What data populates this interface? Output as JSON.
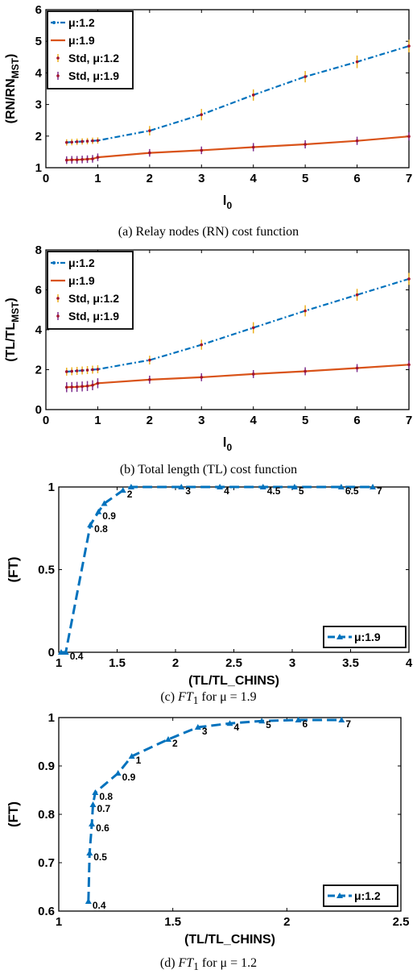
{
  "colors": {
    "blue": "#0072BD",
    "orange": "#D95319",
    "std_orange_bar": "#EDB120",
    "std_purple_bar": "#7E2F8E",
    "std_red_dot": "#A2142F",
    "axis": "#000000",
    "background": "#ffffff"
  },
  "captions": {
    "a": "(a) Relay nodes (RN) cost function",
    "b": "(b) Total length (TL) cost function",
    "c_prefix": "(c) ",
    "c_sym": "FT",
    "c_sub": "1",
    "c_suffix": " for μ = 1.9",
    "d_prefix": "(d) ",
    "d_sym": "FT",
    "d_sub": "1",
    "d_suffix": " for μ = 1.2"
  },
  "chart_data": [
    {
      "id": "a",
      "type": "line",
      "ylabel_main": "(RN/RN",
      "ylabel_sub": "MST",
      "ylabel_end": ")",
      "xlabel_main": "l",
      "xlabel_sub": "0",
      "xlim": [
        0,
        7
      ],
      "ylim": [
        1,
        6
      ],
      "xticks": [
        0,
        1,
        2,
        3,
        4,
        5,
        6,
        7
      ],
      "yticks": [
        1,
        2,
        3,
        4,
        5,
        6
      ],
      "legend_position": "top-left",
      "legend": [
        "μ:1.2",
        "μ:1.9",
        "Std, μ:1.2",
        "Std, μ:1.9"
      ],
      "x": [
        0.4,
        0.5,
        0.6,
        0.7,
        0.8,
        0.9,
        1,
        2,
        3,
        4,
        5,
        6,
        7
      ],
      "series": [
        {
          "name": "μ:1.2",
          "values": [
            1.8,
            1.81,
            1.82,
            1.83,
            1.84,
            1.85,
            1.86,
            2.17,
            2.68,
            3.3,
            3.88,
            4.35,
            4.85
          ],
          "err": [
            0.1,
            0.1,
            0.1,
            0.1,
            0.1,
            0.1,
            0.1,
            0.15,
            0.18,
            0.18,
            0.18,
            0.2,
            0.2
          ]
        },
        {
          "name": "μ:1.9",
          "values": [
            1.24,
            1.25,
            1.25,
            1.26,
            1.27,
            1.28,
            1.33,
            1.47,
            1.55,
            1.65,
            1.74,
            1.85,
            1.99
          ],
          "err": [
            0.12,
            0.12,
            0.12,
            0.12,
            0.12,
            0.12,
            0.12,
            0.12,
            0.12,
            0.13,
            0.13,
            0.13,
            0.13
          ]
        }
      ]
    },
    {
      "id": "b",
      "type": "line",
      "ylabel_main": "(TL/TL",
      "ylabel_sub": "MST",
      "ylabel_end": ")",
      "xlabel_main": "l",
      "xlabel_sub": "0",
      "xlim": [
        0,
        7
      ],
      "ylim": [
        0,
        8
      ],
      "xticks": [
        0,
        1,
        2,
        3,
        4,
        5,
        6,
        7
      ],
      "yticks": [
        0,
        2,
        4,
        6,
        8
      ],
      "legend_position": "top-left",
      "legend": [
        "μ:1.2",
        "μ:1.9",
        "Std, μ:1.2",
        "Std, μ:1.9"
      ],
      "x": [
        0.4,
        0.5,
        0.6,
        0.7,
        0.8,
        0.9,
        1,
        2,
        3,
        4,
        5,
        6,
        7
      ],
      "series": [
        {
          "name": "μ:1.2",
          "values": [
            1.9,
            1.92,
            1.94,
            1.96,
            1.98,
            2.0,
            2.02,
            2.48,
            3.25,
            4.1,
            4.95,
            5.75,
            6.55
          ],
          "err": [
            0.2,
            0.2,
            0.2,
            0.2,
            0.2,
            0.2,
            0.2,
            0.22,
            0.25,
            0.28,
            0.28,
            0.3,
            0.3
          ]
        },
        {
          "name": "μ:1.9",
          "values": [
            1.12,
            1.13,
            1.14,
            1.16,
            1.18,
            1.22,
            1.32,
            1.5,
            1.62,
            1.78,
            1.92,
            2.08,
            2.25
          ],
          "err": [
            0.25,
            0.25,
            0.25,
            0.25,
            0.25,
            0.25,
            0.25,
            0.2,
            0.2,
            0.2,
            0.2,
            0.2,
            0.2
          ]
        }
      ]
    },
    {
      "id": "c",
      "type": "line",
      "ylabel": "(FT)",
      "xlabel": "(TL/TL_CHINS)",
      "xlim": [
        1,
        4
      ],
      "ylim": [
        0,
        1
      ],
      "xticks": [
        "1",
        "1.5",
        "2",
        "2.5",
        "3",
        "3.5",
        "4"
      ],
      "yticks": [
        "0",
        "0.5",
        "1"
      ],
      "legend_position": "bottom-right",
      "legend": [
        "μ:1.9"
      ],
      "points": [
        {
          "x": 1.02,
          "y": 0.0,
          "label": ""
        },
        {
          "x": 1.06,
          "y": 0.0,
          "label": "0.4"
        },
        {
          "x": 1.27,
          "y": 0.77,
          "label": "0.8"
        },
        {
          "x": 1.34,
          "y": 0.85,
          "label": "0.9"
        },
        {
          "x": 1.39,
          "y": 0.9,
          "label": ""
        },
        {
          "x": 1.55,
          "y": 0.98,
          "label": "2"
        },
        {
          "x": 1.62,
          "y": 1.0,
          "label": ""
        },
        {
          "x": 2.05,
          "y": 1.0,
          "label": "3"
        },
        {
          "x": 2.38,
          "y": 1.0,
          "label": "4"
        },
        {
          "x": 2.75,
          "y": 1.0,
          "label": "4.5"
        },
        {
          "x": 3.02,
          "y": 1.0,
          "label": "5"
        },
        {
          "x": 3.42,
          "y": 1.0,
          "label": "6.5"
        },
        {
          "x": 3.69,
          "y": 1.0,
          "label": "7"
        }
      ]
    },
    {
      "id": "d",
      "type": "line",
      "ylabel": "(FT)",
      "xlabel": "(TL/TL_CHINS)",
      "xlim": [
        1,
        2.5
      ],
      "ylim": [
        0.6,
        1
      ],
      "xticks": [
        "1",
        "1.5",
        "2",
        "2.5"
      ],
      "yticks": [
        "0.6",
        "0.7",
        "0.8",
        "0.9",
        "1"
      ],
      "legend_position": "bottom-right",
      "legend": [
        "μ:1.2"
      ],
      "points": [
        {
          "x": 1.13,
          "y": 0.62,
          "label": "0.4"
        },
        {
          "x": 1.135,
          "y": 0.72,
          "label": "0.5"
        },
        {
          "x": 1.145,
          "y": 0.78,
          "label": "0.6"
        },
        {
          "x": 1.15,
          "y": 0.82,
          "label": "0.7"
        },
        {
          "x": 1.16,
          "y": 0.845,
          "label": "0.8"
        },
        {
          "x": 1.26,
          "y": 0.885,
          "label": "0.9"
        },
        {
          "x": 1.32,
          "y": 0.92,
          "label": "1"
        },
        {
          "x": 1.48,
          "y": 0.955,
          "label": "2"
        },
        {
          "x": 1.61,
          "y": 0.98,
          "label": "3"
        },
        {
          "x": 1.75,
          "y": 0.988,
          "label": "4"
        },
        {
          "x": 1.89,
          "y": 0.993,
          "label": "5"
        },
        {
          "x": 2.05,
          "y": 0.995,
          "label": "6"
        },
        {
          "x": 2.24,
          "y": 0.995,
          "label": "7"
        }
      ]
    }
  ]
}
